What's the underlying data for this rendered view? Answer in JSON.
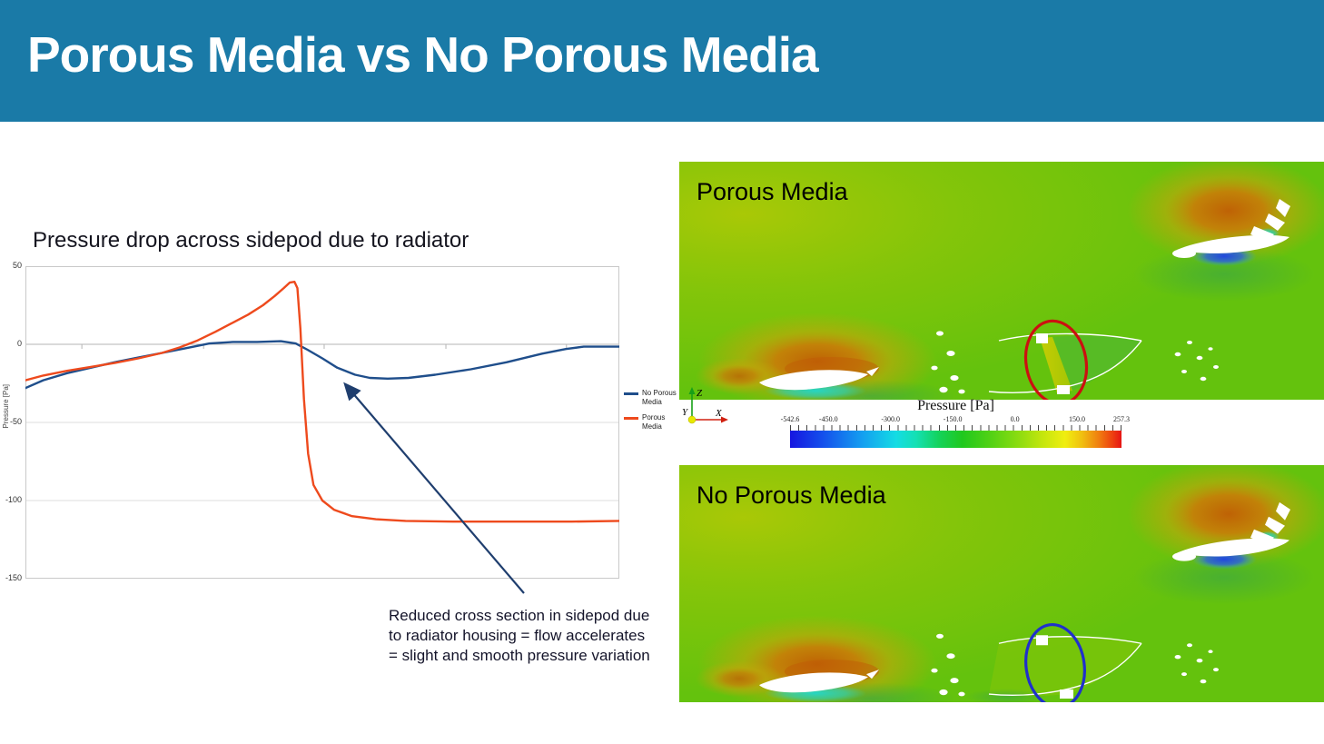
{
  "header": {
    "title": "Porous Media vs No Porous Media",
    "bg_color": "#1a7aa7"
  },
  "chart_data": {
    "type": "line",
    "title": "Pressure drop across sidepod due to radiator",
    "xlabel": "",
    "ylabel": "Pressure [Pa]",
    "ylim": [
      -150,
      50
    ],
    "y_ticks": [
      50,
      0,
      -50,
      -100,
      -150
    ],
    "x_ticks_pct": [
      9.5,
      30,
      50.3,
      70.8,
      91.1
    ],
    "grid": true,
    "legend_position": "right",
    "series": [
      {
        "name": "No Porous Media",
        "color": "#1f4e8b",
        "x": [
          0,
          3,
          7,
          11,
          15,
          19,
          23,
          27,
          31,
          35,
          39,
          43,
          45.5,
          47.5,
          50,
          52.5,
          55.5,
          58,
          61,
          64.5,
          69,
          75,
          81,
          87,
          91,
          94,
          100
        ],
        "y": [
          -28,
          -23,
          -18.5,
          -15,
          -11.5,
          -8.5,
          -5.5,
          -2.5,
          0.5,
          1.5,
          1.5,
          2,
          0.5,
          -3.5,
          -9,
          -15,
          -19.5,
          -21.5,
          -22,
          -21.5,
          -19.5,
          -16,
          -11.5,
          -6,
          -3,
          -1.5,
          -1.5
        ]
      },
      {
        "name": "Porous Media",
        "color": "#ee4a1d",
        "x": [
          0,
          3,
          7,
          11,
          15,
          19,
          23,
          26,
          29,
          32,
          35,
          37.5,
          40,
          42,
          43.5,
          44.5,
          45.3,
          45.8,
          46.3,
          46.9,
          47.6,
          48.5,
          50,
          52,
          55,
          59,
          64,
          72,
          82,
          92,
          100
        ],
        "y": [
          -23,
          -20,
          -17,
          -14.5,
          -12,
          -9,
          -5.5,
          -2,
          2.5,
          8,
          14,
          19,
          25,
          31,
          36,
          39.5,
          40,
          36,
          10,
          -35,
          -70,
          -90,
          -100,
          -106,
          -110,
          -112,
          -113,
          -113.5,
          -113.5,
          -113.5,
          -113
        ]
      }
    ]
  },
  "annotation": {
    "text": "Reduced cross section in sidepod due to radiator housing = flow accelerates = slight and smooth pressure variation",
    "arrow_color": "#1f3e6e"
  },
  "cfd": {
    "top": {
      "label": "Porous Media",
      "annotation_color": "#cc1010"
    },
    "bottom": {
      "label": "No Porous Media",
      "annotation_color": "#2030cc"
    },
    "colorbar": {
      "title": "Pressure [Pa]",
      "min": -542.6,
      "max": 257.3,
      "tick_values": [
        -542.6,
        -450,
        -300,
        -150,
        0,
        150,
        257.3
      ],
      "tick_labels": [
        "-542.6",
        "-450.0",
        "-300.0",
        "-150.0",
        "0.0",
        "150.0",
        "257.3"
      ]
    },
    "triad": {
      "up": "Z",
      "right": "X",
      "out": "Y"
    }
  }
}
